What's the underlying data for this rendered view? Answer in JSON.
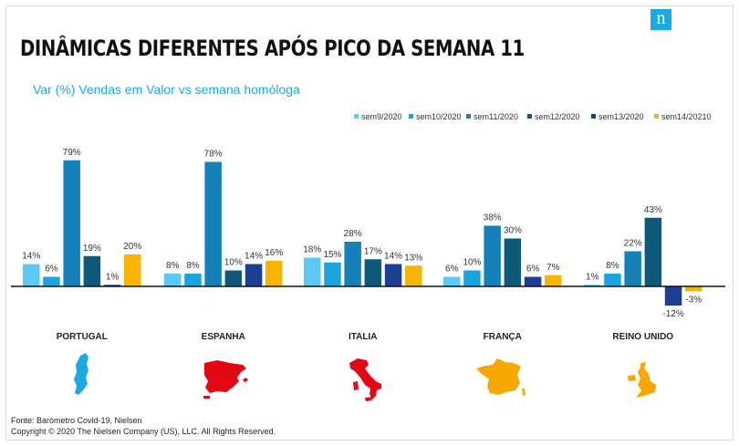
{
  "header": {
    "title": "DINÂMICAS DIFERENTES APÓS PICO DA SEMANA 11",
    "subtitle": "Var (%) Vendas em Valor vs semana homóloga",
    "logo_letter": "n"
  },
  "footer": {
    "source": "Fonte: Barómetro Covid-19, Nielsen",
    "copyright": "Copyright © 2020 The Nielsen Company (US), LLC. All Rights Reserved."
  },
  "maps": [
    {
      "country": "PORTUGAL",
      "color": "#1aa9e2"
    },
    {
      "country": "ESPANHA",
      "color": "#e30613"
    },
    {
      "country": "ITALIA",
      "color": "#e30613"
    },
    {
      "country": "FRANÇA",
      "color": "#f7a800"
    },
    {
      "country": "REINO UNIDO",
      "color": "#f7a800"
    }
  ],
  "chart_data": {
    "type": "bar",
    "categories": [
      "PORTUGAL",
      "ESPANHA",
      "ITALIA",
      "FRANÇA",
      "REINO UNIDO"
    ],
    "series": [
      {
        "name": "sem9/2020",
        "color": "#5bc8f5",
        "values": [
          14,
          8,
          18,
          6,
          1
        ],
        "labels": [
          "14%",
          "8%",
          "18%",
          "6%",
          "1%"
        ]
      },
      {
        "name": "sem10/2020",
        "color": "#1ba3dd",
        "values": [
          6,
          8,
          15,
          10,
          8
        ],
        "labels": [
          "6%",
          "8%",
          "15%",
          "10%",
          "8%"
        ]
      },
      {
        "name": "sem11/2020",
        "color": "#1481b8",
        "values": [
          79,
          78,
          28,
          38,
          22
        ],
        "labels": [
          "79%",
          "78%",
          "28%",
          "38%",
          "22%"
        ]
      },
      {
        "name": "sem12/2020",
        "color": "#0f5a7a",
        "values": [
          19,
          10,
          17,
          30,
          43
        ],
        "labels": [
          "19%",
          "10%",
          "17%",
          "30%",
          "43%"
        ]
      },
      {
        "name": "sem13/2020",
        "color": "#1c3f94",
        "values": [
          1,
          14,
          14,
          6,
          -12
        ],
        "labels": [
          "1%",
          "14%",
          "14%",
          "6%",
          "-12%"
        ]
      },
      {
        "name": "sem14/20210",
        "color": "#f7b500",
        "values": [
          20,
          16,
          13,
          7,
          -3
        ],
        "labels": [
          "20%",
          "16%",
          "13%",
          "7%",
          "-3%"
        ]
      }
    ],
    "legend_position": "top-right",
    "grid": false
  }
}
